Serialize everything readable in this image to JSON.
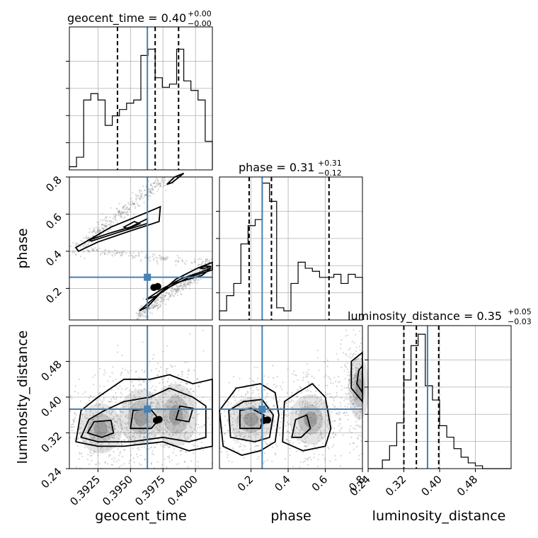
{
  "chart_data": {
    "type": "corner",
    "parameters": [
      "geocent_time",
      "phase",
      "luminosity_distance"
    ],
    "truth_color": "#4682b4",
    "truths": {
      "geocent_time": 0.3963,
      "phase": 0.26,
      "luminosity_distance": 0.373
    },
    "titles": {
      "geocent_time": {
        "text": "geocent_time = 0.40",
        "plus": "+0.00",
        "minus": "−0.00"
      },
      "phase": {
        "text": "phase = 0.31",
        "plus": "+0.31",
        "minus": "−0.12"
      },
      "luminosity_distance": {
        "text": "luminosity_distance = 0.35",
        "plus": "+0.05",
        "minus": "−0.03"
      }
    },
    "axes": {
      "geocent_time": {
        "range": [
          0.3903,
          0.4013
        ],
        "ticks": [
          0.3925,
          0.395,
          0.3975,
          0.4
        ],
        "tick_labels": [
          "0.3925",
          "0.3950",
          "0.3975",
          "0.4000"
        ]
      },
      "phase": {
        "range": [
          0.03,
          0.8
        ],
        "ticks": [
          0.2,
          0.4,
          0.6,
          0.8
        ],
        "tick_labels": [
          "0.2",
          "0.4",
          "0.6",
          "0.8"
        ]
      },
      "luminosity_distance": {
        "range": [
          0.24,
          0.56
        ],
        "ticks": [
          0.24,
          0.32,
          0.4,
          0.48
        ],
        "tick_labels": [
          "0.24",
          "0.32",
          "0.40",
          "0.48"
        ]
      }
    },
    "histograms": {
      "geocent_time": {
        "quantiles": [
          0.394,
          0.3969,
          0.3987
        ],
        "ymax": 45,
        "bins": [
          0.3903,
          0.39085,
          0.3914,
          0.39195,
          0.3925,
          0.39305,
          0.3936,
          0.39415,
          0.3947,
          0.39525,
          0.3958,
          0.39635,
          0.3969,
          0.39745,
          0.398,
          0.39855,
          0.3991,
          0.39965,
          0.4002,
          0.40075,
          0.4013
        ],
        "counts": [
          1,
          4,
          22,
          24,
          22,
          14,
          17,
          19,
          21,
          22,
          36,
          38,
          29,
          26,
          27,
          38,
          28,
          25,
          22,
          9
        ]
      },
      "phase": {
        "quantiles": [
          0.19,
          0.31,
          0.62
        ],
        "ymax": 47,
        "bins": [
          0.03,
          0.0685,
          0.107,
          0.1455,
          0.184,
          0.2225,
          0.261,
          0.2995,
          0.338,
          0.3765,
          0.415,
          0.4535,
          0.492,
          0.5305,
          0.569,
          0.6075,
          0.646,
          0.6845,
          0.723,
          0.7615,
          0.8
        ],
        "counts": [
          3,
          8,
          12,
          25,
          31,
          33,
          45,
          39,
          4,
          3,
          12,
          19,
          17,
          16,
          14,
          14,
          15,
          12,
          15,
          14
        ]
      },
      "luminosity_distance": {
        "quantiles": [
          0.32,
          0.348,
          0.398
        ],
        "ymax": 50,
        "bins": [
          0.24,
          0.256,
          0.272,
          0.288,
          0.304,
          0.32,
          0.336,
          0.352,
          0.368,
          0.384,
          0.4,
          0.416,
          0.432,
          0.448,
          0.464,
          0.48,
          0.496,
          0.512,
          0.528,
          0.544,
          0.56
        ],
        "counts": [
          0,
          0,
          3,
          8,
          16,
          31,
          43,
          47,
          29,
          24,
          15,
          11,
          7,
          4,
          2,
          1,
          0,
          0,
          0,
          0
        ]
      }
    },
    "pairs": [
      {
        "x": "geocent_time",
        "y": "phase",
        "modes": [
          {
            "x1": 0.3906,
            "y1": 0.4,
            "x2": 0.3985,
            "y2": 0.84,
            "width": 0.022
          },
          {
            "x1": 0.3956,
            "y1": 0.06,
            "x2": 0.4013,
            "y2": 0.33,
            "width": 0.02
          }
        ],
        "scatter_bridge": {
          "x1": 0.3915,
          "y1": 0.41,
          "x2": 0.4013,
          "y2": 0.33
        },
        "contours": [
          [
            [
              0.3908,
              0.42
            ],
            [
              0.3935,
              0.53
            ],
            [
              0.3963,
              0.61
            ],
            [
              0.3973,
              0.64
            ],
            [
              0.3972,
              0.56
            ],
            [
              0.395,
              0.51
            ],
            [
              0.3925,
              0.45
            ],
            [
              0.391,
              0.4
            ]
          ],
          [
            [
              0.3918,
              0.46
            ],
            [
              0.3935,
              0.5
            ],
            [
              0.395,
              0.53
            ],
            [
              0.3963,
              0.575
            ],
            [
              0.3963,
              0.55
            ],
            [
              0.394,
              0.5
            ],
            [
              0.392,
              0.455
            ]
          ],
          [
            [
              0.3945,
              0.53
            ],
            [
              0.3953,
              0.56
            ],
            [
              0.3957,
              0.548
            ],
            [
              0.3948,
              0.522
            ]
          ],
          [
            [
              0.3978,
              0.76
            ],
            [
              0.3984,
              0.8
            ],
            [
              0.3991,
              0.82
            ],
            [
              0.3982,
              0.77
            ]
          ],
          [
            [
              0.3957,
              0.08
            ],
            [
              0.397,
              0.16
            ],
            [
              0.3985,
              0.25
            ],
            [
              0.4002,
              0.31
            ],
            [
              0.4013,
              0.34
            ],
            [
              0.4013,
              0.3
            ],
            [
              0.3995,
              0.26
            ],
            [
              0.3975,
              0.19
            ],
            [
              0.3963,
              0.1
            ]
          ],
          [
            [
              0.3962,
              0.14
            ],
            [
              0.3975,
              0.2
            ],
            [
              0.399,
              0.255
            ],
            [
              0.4005,
              0.29
            ],
            [
              0.4012,
              0.31
            ],
            [
              0.4005,
              0.27
            ],
            [
              0.3985,
              0.23
            ],
            [
              0.397,
              0.16
            ]
          ],
          [
            [
              0.4003,
              0.31
            ],
            [
              0.4008,
              0.32
            ],
            [
              0.4012,
              0.318
            ],
            [
              0.4006,
              0.306
            ]
          ]
        ],
        "dense_points": [
          [
            0.3968,
            0.205
          ],
          [
            0.3971,
            0.21
          ]
        ]
      },
      {
        "x": "geocent_time",
        "y": "luminosity_distance",
        "modes": [
          {
            "x": 0.3927,
            "y": 0.33,
            "sx": 0.0012,
            "sy": 0.04
          },
          {
            "x": 0.3958,
            "y": 0.355,
            "sx": 0.0012,
            "sy": 0.045
          },
          {
            "x": 0.3985,
            "y": 0.36,
            "sx": 0.0012,
            "sy": 0.05
          }
        ],
        "contours": [
          [
            [
              0.3908,
              0.3
            ],
            [
              0.3912,
              0.37
            ],
            [
              0.3925,
              0.4
            ],
            [
              0.3945,
              0.44
            ],
            [
              0.3965,
              0.44
            ],
            [
              0.398,
              0.45
            ],
            [
              0.3998,
              0.43
            ],
            [
              0.4013,
              0.44
            ],
            [
              0.4013,
              0.29
            ],
            [
              0.3995,
              0.28
            ],
            [
              0.3975,
              0.3
            ],
            [
              0.3945,
              0.29
            ],
            [
              0.3925,
              0.29
            ]
          ],
          [
            [
              0.3912,
              0.31
            ],
            [
              0.3918,
              0.35
            ],
            [
              0.393,
              0.37
            ],
            [
              0.3945,
              0.39
            ],
            [
              0.3965,
              0.4
            ],
            [
              0.398,
              0.42
            ],
            [
              0.3998,
              0.4
            ],
            [
              0.4008,
              0.38
            ],
            [
              0.4008,
              0.31
            ],
            [
              0.3995,
              0.3
            ],
            [
              0.3975,
              0.31
            ],
            [
              0.395,
              0.3
            ],
            [
              0.3925,
              0.3
            ]
          ],
          [
            [
              0.3917,
              0.32
            ],
            [
              0.3922,
              0.345
            ],
            [
              0.3935,
              0.348
            ],
            [
              0.3937,
              0.32
            ],
            [
              0.3928,
              0.31
            ]
          ],
          [
            [
              0.395,
              0.33
            ],
            [
              0.3952,
              0.37
            ],
            [
              0.3965,
              0.375
            ],
            [
              0.3972,
              0.35
            ],
            [
              0.3966,
              0.33
            ]
          ],
          [
            [
              0.3985,
              0.35
            ],
            [
              0.3988,
              0.38
            ],
            [
              0.3998,
              0.375
            ],
            [
              0.3995,
              0.345
            ]
          ]
        ],
        "dense_points": [
          [
            0.397,
            0.348
          ],
          [
            0.3972,
            0.35
          ]
        ]
      },
      {
        "x": "phase",
        "y": "luminosity_distance",
        "modes": [
          {
            "x": 0.2,
            "y": 0.35,
            "sx": 0.09,
            "sy": 0.035
          },
          {
            "x": 0.52,
            "y": 0.35,
            "sx": 0.08,
            "sy": 0.04
          },
          {
            "x": 0.78,
            "y": 0.42,
            "sx": 0.04,
            "sy": 0.05
          }
        ],
        "contours": [
          [
            [
              0.05,
              0.29
            ],
            [
              0.03,
              0.37
            ],
            [
              0.12,
              0.42
            ],
            [
              0.25,
              0.43
            ],
            [
              0.33,
              0.41
            ],
            [
              0.35,
              0.36
            ],
            [
              0.33,
              0.3
            ],
            [
              0.25,
              0.28
            ],
            [
              0.15,
              0.27
            ]
          ],
          [
            [
              0.09,
              0.31
            ],
            [
              0.08,
              0.37
            ],
            [
              0.16,
              0.39
            ],
            [
              0.26,
              0.395
            ],
            [
              0.32,
              0.36
            ],
            [
              0.3,
              0.31
            ],
            [
              0.22,
              0.3
            ]
          ],
          [
            [
              0.14,
              0.33
            ],
            [
              0.14,
              0.37
            ],
            [
              0.2,
              0.375
            ],
            [
              0.27,
              0.36
            ],
            [
              0.25,
              0.33
            ]
          ],
          [
            [
              0.37,
              0.3
            ],
            [
              0.38,
              0.39
            ],
            [
              0.45,
              0.41
            ],
            [
              0.53,
              0.43
            ],
            [
              0.6,
              0.4
            ],
            [
              0.63,
              0.33
            ],
            [
              0.6,
              0.29
            ],
            [
              0.48,
              0.28
            ]
          ],
          [
            [
              0.42,
              0.31
            ],
            [
              0.44,
              0.35
            ],
            [
              0.5,
              0.36
            ],
            [
              0.52,
              0.33
            ],
            [
              0.47,
              0.31
            ]
          ],
          [
            [
              0.8,
              0.39
            ],
            [
              0.74,
              0.42
            ],
            [
              0.74,
              0.48
            ],
            [
              0.8,
              0.5
            ]
          ],
          [
            [
              0.8,
              0.41
            ],
            [
              0.77,
              0.43
            ],
            [
              0.78,
              0.46
            ],
            [
              0.8,
              0.47
            ]
          ]
        ],
        "dense_points": [
          [
            0.27,
            0.348
          ],
          [
            0.29,
            0.349
          ]
        ]
      }
    ]
  }
}
